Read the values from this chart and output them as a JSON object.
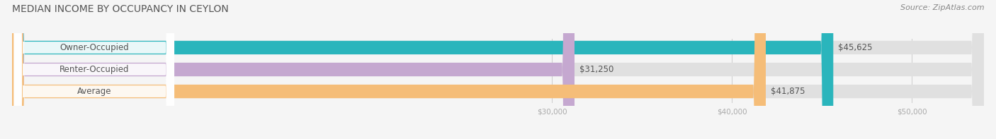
{
  "title": "MEDIAN INCOME BY OCCUPANCY IN CEYLON",
  "source": "Source: ZipAtlas.com",
  "categories": [
    "Owner-Occupied",
    "Renter-Occupied",
    "Average"
  ],
  "values": [
    45625,
    31250,
    41875
  ],
  "bar_colors": [
    "#2ab5bc",
    "#c5a8d0",
    "#f5bd78"
  ],
  "bar_bg_color": "#e0e0e0",
  "value_labels": [
    "$45,625",
    "$31,250",
    "$41,875"
  ],
  "xmin": 0,
  "xmax": 54000,
  "xticks": [
    30000,
    40000,
    50000
  ],
  "xtick_labels": [
    "$30,000",
    "$40,000",
    "$50,000"
  ],
  "title_fontsize": 10,
  "label_fontsize": 8.5,
  "value_fontsize": 8.5,
  "source_fontsize": 8,
  "bar_height": 0.62,
  "bar_gap": 0.28,
  "background_color": "#f5f5f5",
  "label_box_color": "white",
  "label_text_color": "#555555",
  "value_text_color": "#555555",
  "grid_color": "#cccccc",
  "tick_color": "#aaaaaa"
}
